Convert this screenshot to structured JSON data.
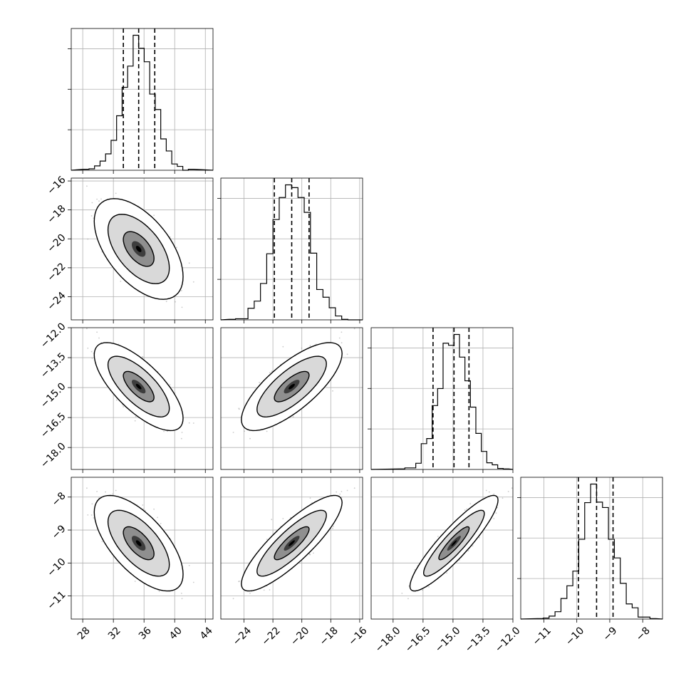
{
  "figure": {
    "title": "",
    "parameters": [
      "",
      "",
      "",
      ""
    ]
  },
  "chart_data": {
    "type": "corner",
    "title": "",
    "grid": true,
    "colors": {
      "line": "#000000",
      "grid": "#b0b0b0",
      "points": "#8c8c8c",
      "density_low": "#ffffff",
      "density_high": "#000000"
    },
    "parameters": [
      {
        "label": "",
        "range": [
          26.5,
          45
        ],
        "ticks": [
          28,
          32,
          36,
          40,
          44
        ],
        "tick_labels": [
          "28",
          "32",
          "36",
          "40",
          "44"
        ],
        "mean": 35.3,
        "std": 2.0,
        "quantiles": [
          33.3,
          35.3,
          37.4
        ]
      },
      {
        "label": "",
        "range": [
          -25.6,
          -15.8
        ],
        "ticks": [
          -24,
          -22,
          -20,
          -18,
          -16
        ],
        "tick_labels": [
          "−24",
          "−22",
          "−20",
          "−18",
          "−16"
        ],
        "mean": -20.7,
        "std": 1.2,
        "quantiles": [
          -21.9,
          -20.7,
          -19.5
        ]
      },
      {
        "label": "",
        "range": [
          -19.1,
          -12.0
        ],
        "ticks": [
          -18.0,
          -16.5,
          -15.0,
          -13.5,
          -12.0
        ],
        "tick_labels": [
          "−18.0",
          "−16.5",
          "−15.0",
          "−13.5",
          "−12.0"
        ],
        "mean": -14.95,
        "std": 0.76,
        "quantiles": [
          -16.0,
          -14.95,
          -14.2
        ]
      },
      {
        "label": "",
        "range": [
          -11.7,
          -7.4
        ],
        "ticks": [
          -11,
          -10,
          -9,
          -8
        ],
        "tick_labels": [
          "−11",
          "−10",
          "−9",
          "−8"
        ],
        "mean": -9.4,
        "std": 0.5,
        "quantiles": [
          -9.95,
          -9.4,
          -8.9
        ]
      }
    ],
    "correlations": [
      {
        "pair": [
          0,
          1
        ],
        "rho": -0.55
      },
      {
        "pair": [
          0,
          2
        ],
        "rho": -0.72
      },
      {
        "pair": [
          1,
          2
        ],
        "rho": 0.75
      },
      {
        "pair": [
          0,
          3
        ],
        "rho": -0.65
      },
      {
        "pair": [
          1,
          3
        ],
        "rho": 0.85
      },
      {
        "pair": [
          2,
          3
        ],
        "rho": 0.9
      }
    ],
    "hist_bins": 20,
    "contour_levels": [
      0.39,
      0.86,
      0.99
    ]
  }
}
